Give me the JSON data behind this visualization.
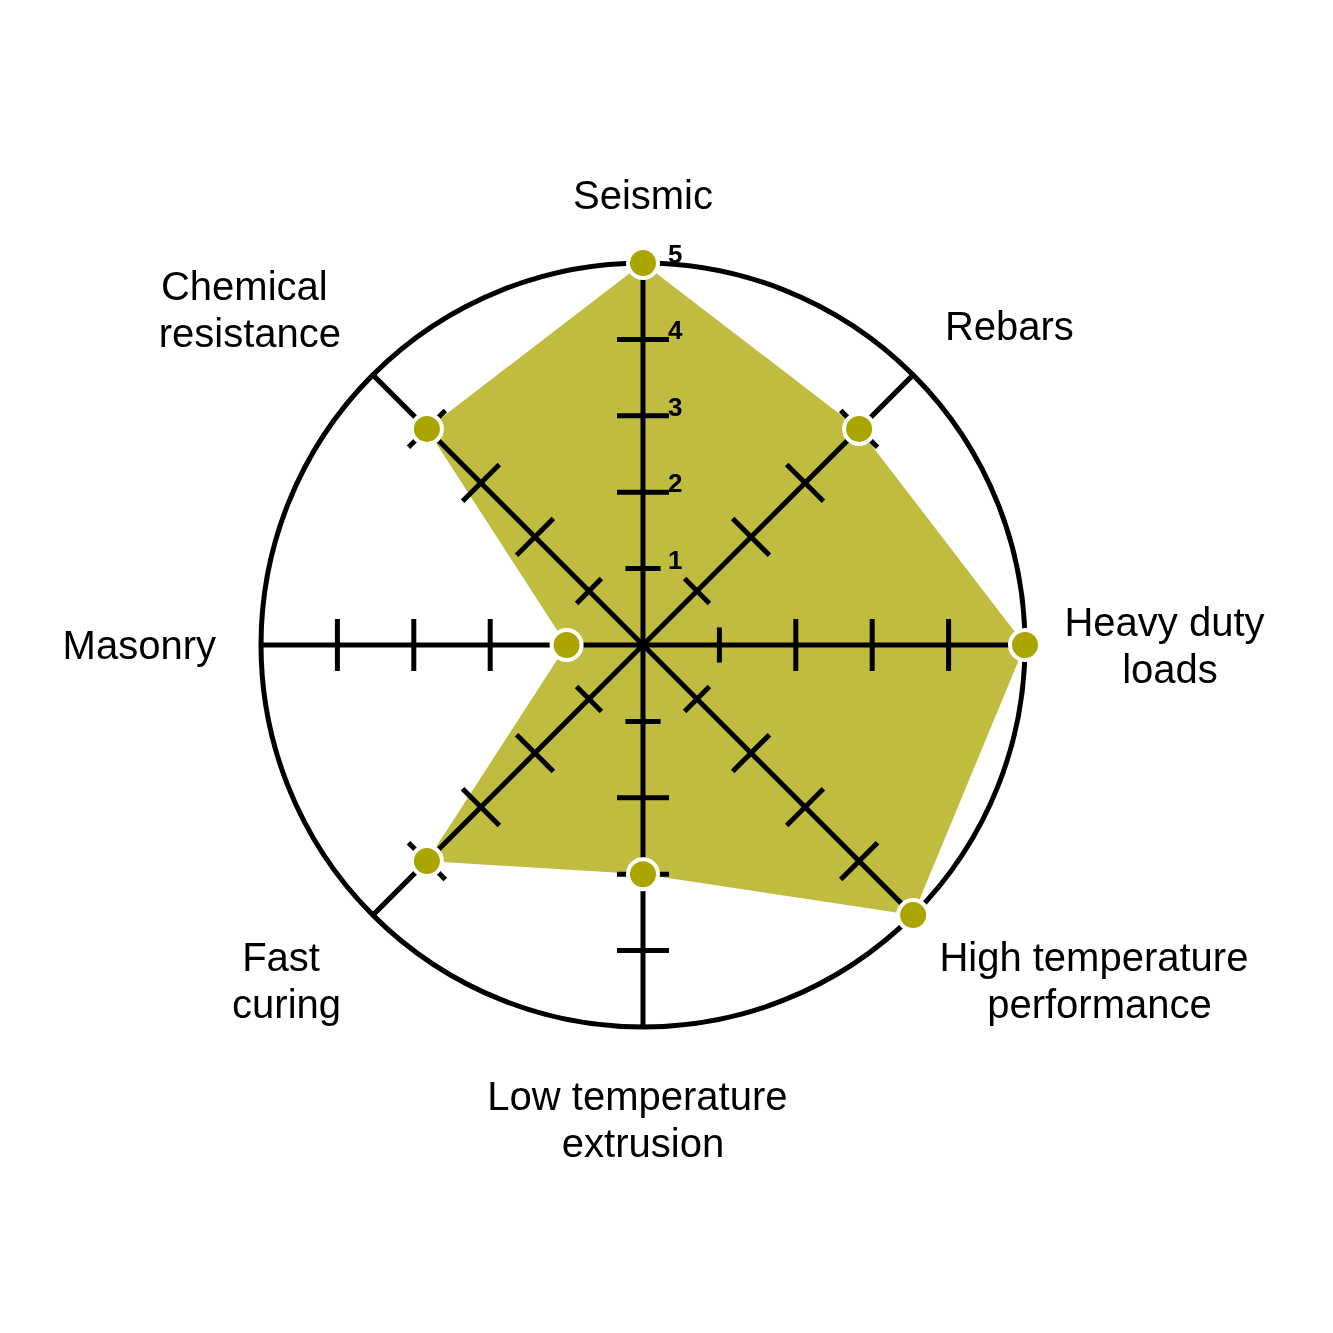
{
  "chart_data": {
    "type": "radar",
    "categories": [
      "Seismic",
      "Rebars",
      "Heavy duty\nloads",
      "High temperature\nperformance",
      "Low temperature\nextrusion",
      "Fast\ncuring",
      "Masonry",
      "Chemical\nresistance"
    ],
    "series": [
      {
        "color": "#aaa500",
        "values": [
          5,
          4,
          5,
          5,
          3,
          4,
          1,
          4
        ]
      }
    ],
    "ylim": [
      0,
      5
    ],
    "yticks": [
      1,
      2,
      3,
      4,
      5
    ],
    "grid": true,
    "marker": "circle"
  }
}
